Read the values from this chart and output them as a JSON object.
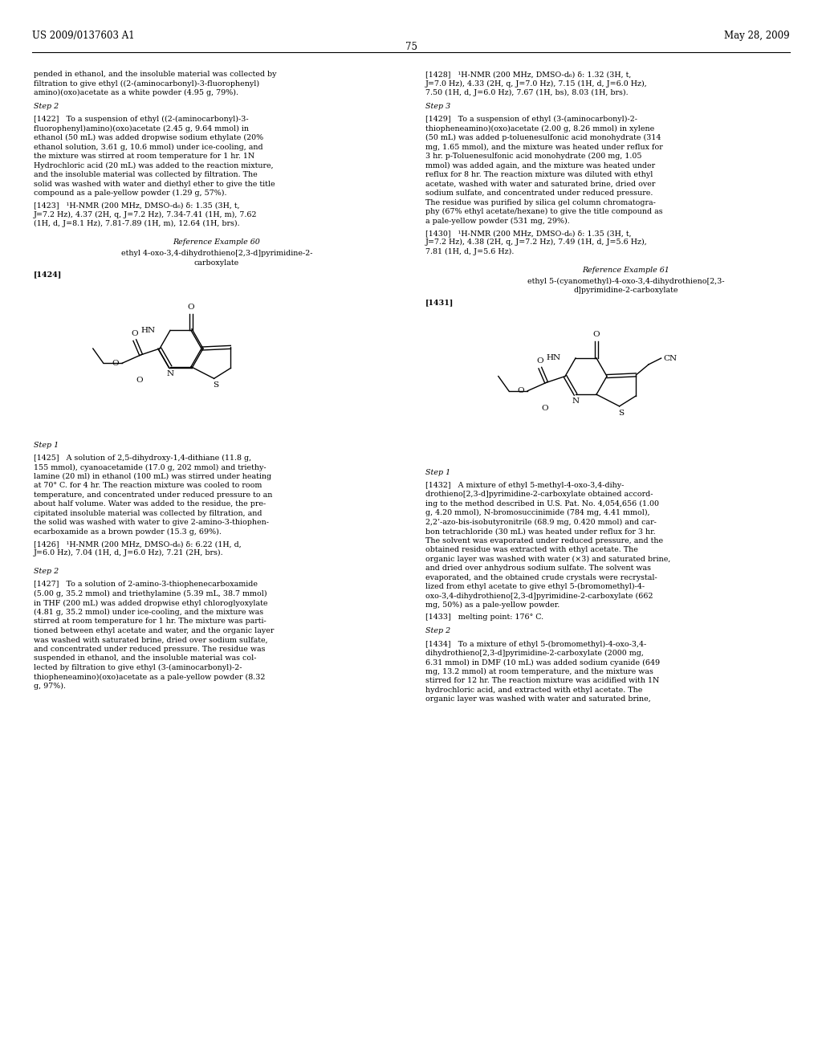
{
  "page_number": "75",
  "header_left": "US 2009/0137603 A1",
  "header_right": "May 28, 2009",
  "background_color": "#ffffff",
  "font_size_body": 6.8,
  "font_size_header": 8.5,
  "col_wrap": 55,
  "left_col_text_top": [
    "pended in ethanol, and the insoluble material was collected by",
    "filtration to give ethyl ((2-(aminocarbonyl)-3-fluorophenyl)",
    "amino)(oxo)acetate as a white powder (4.95 g, 79%)."
  ],
  "step2_left_label": "Step 2",
  "para_1422": "[1422]   To a suspension of ethyl ((2-(aminocarbonyl)-3-\nfluorophenyl)amino)(oxo)acetate (2.45 g, 9.64 mmol) in\nethanol (50 mL) was added dropwise sodium ethylate (20%\nethanol solution, 3.61 g, 10.6 mmol) under ice-cooling, and\nthe mixture was stirred at room temperature for 1 hr. 1N\nHydrochloric acid (20 mL) was added to the reaction mixture,\nand the insoluble material was collected by filtration. The\nsolid was washed with water and diethyl ether to give the title\ncompound as a pale-yellow powder (1.29 g, 57%).",
  "para_1423": "[1423]   ¹H-NMR (200 MHz, DMSO-d₆) δ: 1.35 (3H, t,\nJ=7.2 Hz), 4.37 (2H, q, J=7.2 Hz), 7.34-7.41 (1H, m), 7.62\n(1H, d, J=8.1 Hz), 7.81-7.89 (1H, m), 12.64 (1H, brs).",
  "ref_ex_60_label": "Reference Example 60",
  "ref_ex_60_title1": "ethyl 4-oxo-3,4-dihydrothieno[2,3-d]pyrimidine-2-",
  "ref_ex_60_title2": "carboxylate",
  "para_1424_label": "[1424]",
  "step1_left_label2": "Step 1",
  "para_1425": "[1425]   A solution of 2,5-dihydroxy-1,4-dithiane (11.8 g,\n155 mmol), cyanoacetamide (17.0 g, 202 mmol) and triethy-\nlamine (20 ml) in ethanol (100 mL) was stirred under heating\nat 70° C. for 4 hr. The reaction mixture was cooled to room\ntemperature, and concentrated under reduced pressure to an\nabout half volume. Water was added to the residue, the pre-\ncipitated insoluble material was collected by filtration, and\nthe solid was washed with water to give 2-amino-3-thiophen-\necarboxamide as a brown powder (15.3 g, 69%).",
  "para_1426": "[1426]   ¹H-NMR (200 MHz, DMSO-d₆) δ: 6.22 (1H, d,\nJ=6.0 Hz), 7.04 (1H, d, J=6.0 Hz), 7.21 (2H, brs).",
  "step2_left_label2": "Step 2",
  "para_1427": "[1427]   To a solution of 2-amino-3-thiophenecarboxamide\n(5.00 g, 35.2 mmol) and triethylamine (5.39 mL, 38.7 mmol)\nin THF (200 mL) was added dropwise ethyl chloroglyoxylate\n(4.81 g, 35.2 mmol) under ice-cooling, and the mixture was\nstirred at room temperature for 1 hr. The mixture was parti-\ntioned between ethyl acetate and water, and the organic layer\nwas washed with saturated brine, dried over sodium sulfate,\nand concentrated under reduced pressure. The residue was\nsuspended in ethanol, and the insoluble material was col-\nlected by filtration to give ethyl (3-(aminocarbonyl)-2-\nthiopheneamino)(oxo)acetate as a pale-yellow powder (8.32\ng, 97%).",
  "right_col_text_top": [
    "[1428]   ¹H-NMR (200 MHz, DMSO-d₆) δ: 1.32 (3H, t,",
    "J=7.0 Hz), 4.33 (2H, q, J=7.0 Hz), 7.15 (1H, d, J=6.0 Hz),",
    "7.50 (1H, d, J=6.0 Hz), 7.67 (1H, bs), 8.03 (1H, brs)."
  ],
  "step3_right_label": "Step 3",
  "para_1429": "[1429]   To a suspension of ethyl (3-(aminocarbonyl)-2-\nthiopheneamino)(oxo)acetate (2.00 g, 8.26 mmol) in xylene\n(50 mL) was added p-toluenesulfonic acid monohydrate (314\nmg, 1.65 mmol), and the mixture was heated under reflux for\n3 hr. p-Toluenesulfonic acid monohydrate (200 mg, 1.05\nmmol) was added again, and the mixture was heated under\nreflux for 8 hr. The reaction mixture was diluted with ethyl\nacetate, washed with water and saturated brine, dried over\nsodium sulfate, and concentrated under reduced pressure.\nThe residue was purified by silica gel column chromatogra-\nphy (67% ethyl acetate/hexane) to give the title compound as\na pale-yellow powder (531 mg, 29%).",
  "para_1430": "[1430]   ¹H-NMR (200 MHz, DMSO-d₆) δ: 1.35 (3H, t,\nJ=7.2 Hz), 4.38 (2H, q, J=7.2 Hz), 7.49 (1H, d, J=5.6 Hz),\n7.81 (1H, d, J=5.6 Hz).",
  "ref_ex_61_label": "Reference Example 61",
  "ref_ex_61_title1": "ethyl 5-(cyanomethyl)-4-oxo-3,4-dihydrothieno[2,3-",
  "ref_ex_61_title2": "d]pyrimidine-2-carboxylate",
  "para_1431_label": "[1431]",
  "step1_right_label2": "Step 1",
  "para_1432": "[1432]   A mixture of ethyl 5-methyl-4-oxo-3,4-dihy-\ndrothieno[2,3-d]pyrimidine-2-carboxylate obtained accord-\ning to the method described in U.S. Pat. No. 4,054,656 (1.00\ng, 4.20 mmol), N-bromosuccinimide (784 mg, 4.41 mmol),\n2,2’-azo-bis-isobutyronitrile (68.9 mg, 0.420 mmol) and car-\nbon tetrachloride (30 mL) was heated under reflux for 3 hr.\nThe solvent was evaporated under reduced pressure, and the\nobtained residue was extracted with ethyl acetate. The\norganic layer was washed with water (×3) and saturated brine,\nand dried over anhydrous sodium sulfate. The solvent was\nevaporated, and the obtained crude crystals were recrystal-\nlized from ethyl acetate to give ethyl 5-(bromomethyl)-4-\noxo-3,4-dihydrothieno[2,3-d]pyrimidine-2-carboxylate (662\nmg, 50%) as a pale-yellow powder.",
  "para_1433": "[1433]   melting point: 176° C.",
  "step2_right_label2": "Step 2",
  "para_1434": "[1434]   To a mixture of ethyl 5-(bromomethyl)-4-oxo-3,4-\ndihydrothieno[2,3-d]pyrimidine-2-carboxylate (2000 mg,\n6.31 mmol) in DMF (10 mL) was added sodium cyanide (649\nmg, 13.2 mmol) at room temperature, and the mixture was\nstirred for 12 hr. The reaction mixture was acidified with 1N\nhydrochloric acid, and extracted with ethyl acetate. The\norganic layer was washed with water and saturated brine,"
}
